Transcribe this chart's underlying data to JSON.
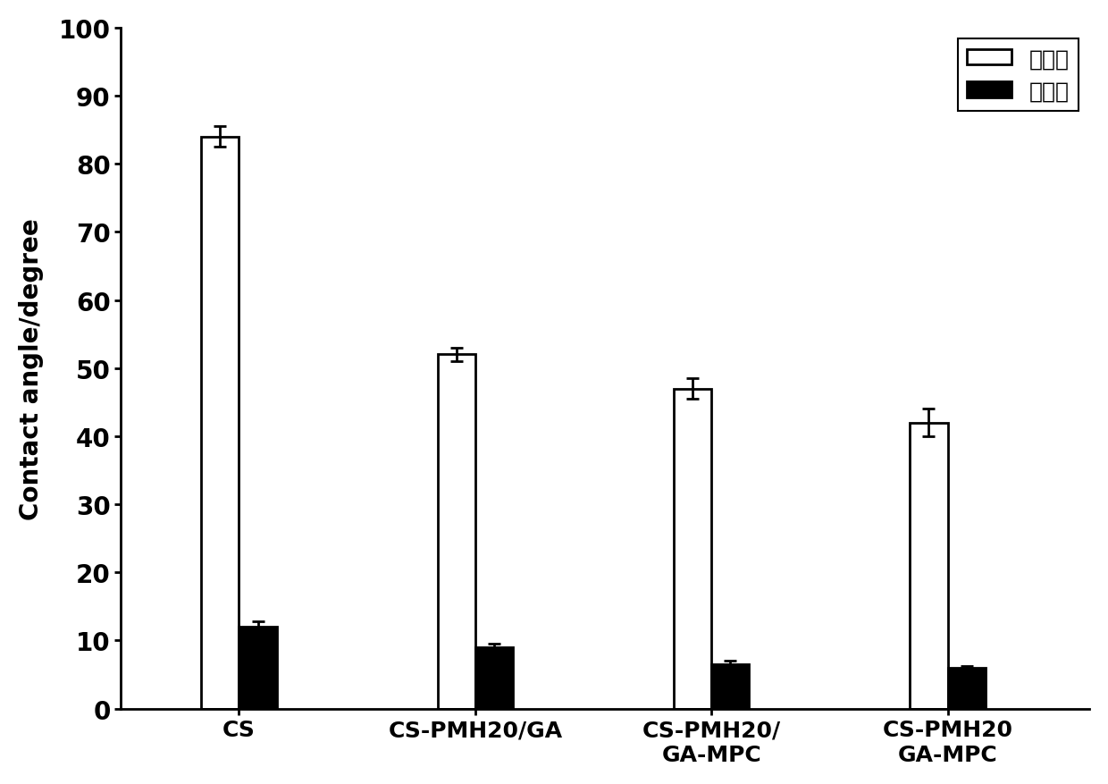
{
  "categories": [
    "CS",
    "CS-PMH20/GA",
    "CS-PMH20/\nGA-MPC",
    "CS-PMH20\nGA-MPC"
  ],
  "advancing_values": [
    84,
    52,
    47,
    42
  ],
  "receding_values": [
    12,
    9,
    6.5,
    6
  ],
  "advancing_errors": [
    1.5,
    1.0,
    1.5,
    2.0
  ],
  "receding_errors": [
    0.8,
    0.5,
    0.5,
    0.3
  ],
  "advancing_color": "#ffffff",
  "receding_color": "#000000",
  "bar_edge_color": "#000000",
  "background_color": "#ffffff",
  "ylabel": "Contact angle/degree",
  "ylim": [
    0,
    100
  ],
  "yticks": [
    0,
    10,
    20,
    30,
    40,
    50,
    60,
    70,
    80,
    90,
    100
  ],
  "legend_advancing": "前进角",
  "legend_receding": "后退角",
  "bar_width": 0.32,
  "figsize": [
    12.4,
    8.78
  ],
  "dpi": 100,
  "font_size_ticks": 20,
  "font_size_ylabel": 20,
  "font_size_legend": 18,
  "font_size_xticks": 18,
  "linewidth": 2.0,
  "x_positions": [
    1.0,
    3.0,
    5.0,
    7.0
  ],
  "xlim": [
    0.0,
    8.2
  ]
}
